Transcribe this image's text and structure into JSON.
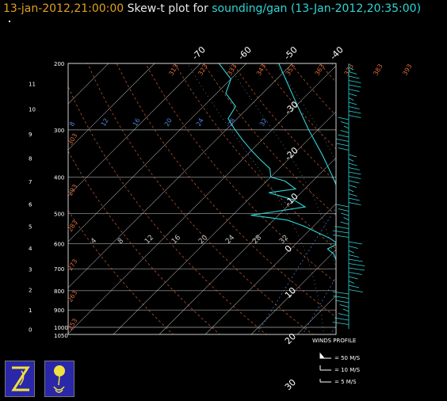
{
  "title": {
    "date": "13-jan-2012,21:00:00",
    "mid": "Skew-t plot for",
    "source": "sounding/gan",
    "valid": "(13-Jan-2012,20:35:00)"
  },
  "colors": {
    "background": "#000000",
    "isotherm": "#c8c8c8",
    "isobar": "#c8c8c8",
    "dry_adiabat": "#d86a3a",
    "mixing_ratio": "#4a86d6",
    "moist_adiabat": "#c8c8c8",
    "profile": "#2ed6d6",
    "wind": "#2ed6d6",
    "logo_bg": "#2a27a8",
    "logo_fg": "#f0e040"
  },
  "chart_data": {
    "type": "line",
    "subtype": "skew-t log-p",
    "pressure_range_hpa": [
      1050,
      200
    ],
    "pressure_labels": [
      "200",
      "300",
      "400",
      "500",
      "600",
      "700",
      "800",
      "900",
      "1000",
      "1050"
    ],
    "pressure_levels": [
      200,
      300,
      400,
      500,
      600,
      700,
      800,
      900,
      1000,
      1050
    ],
    "height_labels_km": [
      "11",
      "10",
      "9",
      "8",
      "7",
      "6",
      "5",
      "4",
      "3",
      "2",
      "1",
      "0"
    ],
    "heights_km": [
      11,
      10,
      9,
      8,
      7,
      6,
      5,
      4,
      3,
      2,
      1,
      0
    ],
    "isotherm_labels_c": [
      "-70",
      "-60",
      "-50",
      "-40",
      "-30",
      "-20",
      "-10",
      "0",
      "10",
      "20",
      "30"
    ],
    "isotherms_c": [
      -70,
      -60,
      -50,
      -40,
      -30,
      -20,
      -10,
      0,
      10,
      20,
      30
    ],
    "dry_adiabat_top_labels": [
      "313",
      "323",
      "333",
      "343",
      "353",
      "363",
      "373",
      "383",
      "393"
    ],
    "dry_adiabat_left_labels": [
      "303",
      "293",
      "283",
      "273",
      "263",
      "253"
    ],
    "mixing_ratio_labels_upper": [
      "8",
      "12",
      "16",
      "20",
      "24",
      "28",
      "32"
    ],
    "mixing_ratio_labels_lower": [
      "4",
      "8",
      "12",
      "16",
      "20",
      "24",
      "28",
      "32"
    ],
    "temperature_profile": [
      {
        "p": 1000,
        "t": 26.5
      },
      {
        "p": 980,
        "t": 25.0
      },
      {
        "p": 950,
        "t": 23.0
      },
      {
        "p": 925,
        "t": 22.0
      },
      {
        "p": 900,
        "t": 21.0
      },
      {
        "p": 850,
        "t": 18.0
      },
      {
        "p": 800,
        "t": 15.0
      },
      {
        "p": 750,
        "t": 12.0
      },
      {
        "p": 700,
        "t": 9.0
      },
      {
        "p": 650,
        "t": 5.5
      },
      {
        "p": 600,
        "t": 2.5
      },
      {
        "p": 550,
        "t": -1.0
      },
      {
        "p": 500,
        "t": -5.5
      },
      {
        "p": 450,
        "t": -10.5
      },
      {
        "p": 400,
        "t": -16.5
      },
      {
        "p": 350,
        "t": -23.5
      },
      {
        "p": 300,
        "t": -32.0
      },
      {
        "p": 250,
        "t": -41.5
      },
      {
        "p": 200,
        "t": -53.0
      }
    ],
    "dewpoint_profile": [
      {
        "p": 1000,
        "t": 24.0
      },
      {
        "p": 975,
        "t": 22.0
      },
      {
        "p": 950,
        "t": 20.0
      },
      {
        "p": 925,
        "t": 18.5
      },
      {
        "p": 900,
        "t": 17.5
      },
      {
        "p": 870,
        "t": 16.5
      },
      {
        "p": 850,
        "t": 15.5
      },
      {
        "p": 800,
        "t": 12.0
      },
      {
        "p": 750,
        "t": 8.5
      },
      {
        "p": 700,
        "t": 6.0
      },
      {
        "p": 660,
        "t": 2.0
      },
      {
        "p": 640,
        "t": 0.5
      },
      {
        "p": 620,
        "t": -2.0
      },
      {
        "p": 600,
        "t": -1.0
      },
      {
        "p": 580,
        "t": -4.0
      },
      {
        "p": 560,
        "t": -8.0
      },
      {
        "p": 540,
        "t": -12.0
      },
      {
        "p": 520,
        "t": -17.0
      },
      {
        "p": 505,
        "t": -26.0
      },
      {
        "p": 495,
        "t": -22.0
      },
      {
        "p": 480,
        "t": -16.0
      },
      {
        "p": 460,
        "t": -20.0
      },
      {
        "p": 440,
        "t": -27.0
      },
      {
        "p": 430,
        "t": -22.0
      },
      {
        "p": 410,
        "t": -26.0
      },
      {
        "p": 400,
        "t": -30.0
      },
      {
        "p": 380,
        "t": -32.0
      },
      {
        "p": 360,
        "t": -36.0
      },
      {
        "p": 340,
        "t": -40.0
      },
      {
        "p": 320,
        "t": -44.0
      },
      {
        "p": 300,
        "t": -48.0
      },
      {
        "p": 280,
        "t": -52.0
      },
      {
        "p": 260,
        "t": -53.0
      },
      {
        "p": 240,
        "t": -58.0
      },
      {
        "p": 220,
        "t": -60.0
      },
      {
        "p": 200,
        "t": -66.0
      }
    ],
    "wind_profile_samples": 60
  },
  "legend": {
    "title": "WINDS PROFILE",
    "rows": [
      {
        "label": "= 50 M/S"
      },
      {
        "label": "= 10 M/S"
      },
      {
        "label": "= 5 M/S"
      }
    ]
  },
  "logos": [
    {
      "icon": "z-logo-icon"
    },
    {
      "icon": "sounding-balloon-icon"
    }
  ]
}
